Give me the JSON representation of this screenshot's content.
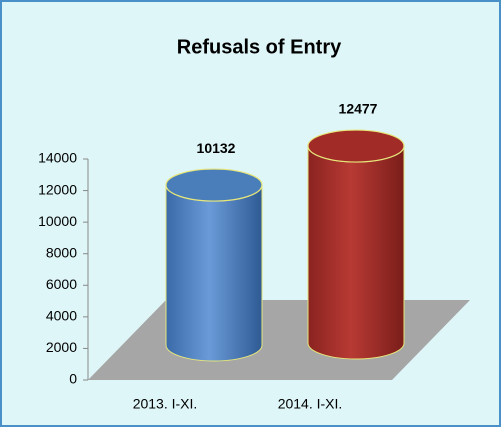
{
  "chart_data": {
    "type": "cylinder",
    "title": "Refusals of Entry",
    "categories": [
      "2013. I-XI.",
      "2014. I-XI."
    ],
    "values": [
      10132,
      12477
    ],
    "colors": [
      "#4a7ebb",
      "#a02b27"
    ],
    "ylim": [
      0,
      14000
    ],
    "yticks": [
      0,
      2000,
      4000,
      6000,
      8000,
      10000,
      12000,
      14000
    ]
  }
}
